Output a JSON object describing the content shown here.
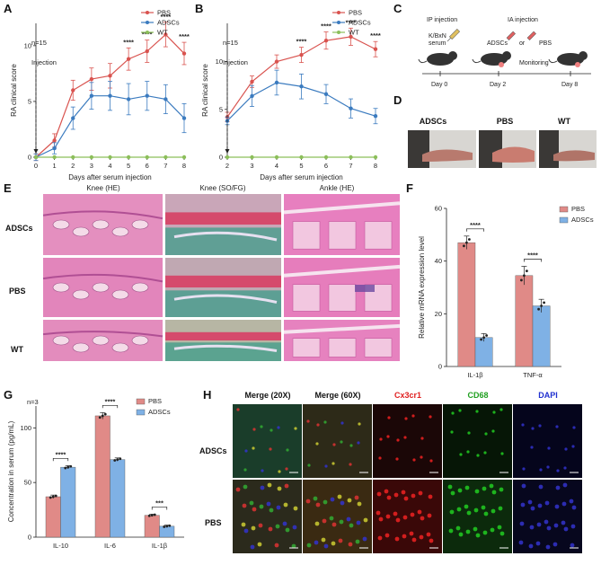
{
  "panels": {
    "A": "A",
    "B": "B",
    "C": "C",
    "D": "D",
    "E": "E",
    "F": "F",
    "G": "G",
    "H": "H"
  },
  "colors": {
    "pbs": "#d9534f",
    "adscs": "#3b7bbf",
    "wt": "#8cbf5a",
    "bar_pbs": "#e08a87",
    "bar_adscs": "#7fb1e5"
  },
  "panelA": {
    "n_label": "n=15",
    "injection_label": "Injection"
  },
  "panelB": {
    "n_label": "n=15",
    "injection_label": "Injection"
  },
  "panelC": {
    "ip_label": "IP injection",
    "ia_label": "IA injection",
    "serum_label1": "K/BxN",
    "serum_label2": "serum",
    "adscs_label": "ADSCs",
    "or_label": "or",
    "pbs_label": "PBS",
    "monitoring_label": "Monitoring",
    "day0": "Day 0",
    "day2": "Day 2",
    "day8": "Day 8"
  },
  "panelD": {
    "labels": [
      "ADSCs",
      "PBS",
      "WT"
    ]
  },
  "panelE": {
    "col_headers": [
      "Knee (HE)",
      "Knee (SO/FG)",
      "Ankle (HE)"
    ],
    "row_labels": [
      "ADSCs",
      "PBS",
      "WT"
    ]
  },
  "panelG": {
    "n_label": "n=3"
  },
  "panelH": {
    "col_headers": [
      "Merge (20X)",
      "Merge (60X)",
      "Cx3cr1",
      "CD68",
      "DAPI"
    ],
    "col_colors": [
      "#111111",
      "#111111",
      "#e02020",
      "#20a020",
      "#2030d0"
    ],
    "row_labels": [
      "ADSCs",
      "PBS"
    ]
  },
  "chart_data": [
    {
      "id": "A",
      "type": "line",
      "xlabel": "Days after serum injection",
      "ylabel": "RA clinical score",
      "x": [
        0,
        1,
        2,
        3,
        4,
        5,
        6,
        7,
        8
      ],
      "xlim": [
        0,
        8
      ],
      "ylim": [
        0,
        12
      ],
      "yticks": [
        0,
        5,
        10
      ],
      "series": [
        {
          "name": "PBS",
          "values": [
            0,
            1.5,
            6,
            7,
            7.3,
            8.8,
            9.5,
            11,
            9.3
          ],
          "err": [
            0.3,
            0.6,
            0.9,
            1.0,
            1.1,
            1.0,
            1.0,
            1.1,
            1.0
          ]
        },
        {
          "name": "ADSCs",
          "values": [
            0,
            0.8,
            3.5,
            5.5,
            5.5,
            5.2,
            5.5,
            5.2,
            3.5
          ],
          "err": [
            0.3,
            0.5,
            1.0,
            1.2,
            1.3,
            1.4,
            1.3,
            1.3,
            1.3
          ]
        },
        {
          "name": "WT",
          "values": [
            0,
            0,
            0,
            0,
            0,
            0,
            0,
            0,
            0
          ]
        }
      ],
      "annotations": [
        {
          "x": 5,
          "text": "****"
        },
        {
          "x": 6,
          "text": "****"
        },
        {
          "x": 7,
          "text": "****"
        },
        {
          "x": 8,
          "text": "****"
        }
      ],
      "legend": "top-right"
    },
    {
      "id": "B",
      "type": "line",
      "xlabel": "Days after serum injection",
      "ylabel": "RA clinical score",
      "x": [
        2,
        3,
        4,
        5,
        6,
        7,
        8
      ],
      "xlim": [
        2,
        8
      ],
      "ylim": [
        0,
        14
      ],
      "yticks": [
        0,
        5,
        10
      ],
      "series": [
        {
          "name": "PBS",
          "values": [
            4.2,
            7.9,
            10,
            10.7,
            12.2,
            12.6,
            11.3
          ],
          "err": [
            0.5,
            0.6,
            0.7,
            0.8,
            0.9,
            0.9,
            0.8
          ]
        },
        {
          "name": "ADSCs",
          "values": [
            3.8,
            6.4,
            7.8,
            7.4,
            6.6,
            5.1,
            4.3
          ],
          "err": [
            0.4,
            1.1,
            1.3,
            1.3,
            1.0,
            1.0,
            0.8
          ]
        },
        {
          "name": "WT",
          "values": [
            0,
            0,
            0,
            0,
            0,
            0,
            0
          ]
        }
      ],
      "annotations": [
        {
          "x": 5,
          "text": "****"
        },
        {
          "x": 6,
          "text": "****"
        },
        {
          "x": 7,
          "text": "****"
        },
        {
          "x": 8,
          "text": "****"
        }
      ],
      "legend": "top-right"
    },
    {
      "id": "F",
      "type": "bar",
      "ylabel": "Relative mRNA expression level",
      "categories": [
        "IL-1β",
        "TNF-α"
      ],
      "ylim": [
        0,
        60
      ],
      "yticks": [
        0,
        20,
        40,
        60
      ],
      "series": [
        {
          "name": "PBS",
          "values": [
            47,
            34.5
          ],
          "err": [
            2.5,
            3.5
          ]
        },
        {
          "name": "ADSCs",
          "values": [
            11,
            23
          ],
          "err": [
            1.5,
            2.5
          ]
        }
      ],
      "annotations": [
        {
          "category": "IL-1β",
          "text": "****"
        },
        {
          "category": "TNF-α",
          "text": "****"
        }
      ],
      "legend": "top-right"
    },
    {
      "id": "G",
      "type": "bar",
      "ylabel": "Concentration in serum (pg/mL)",
      "categories": [
        "IL-10",
        "IL-6",
        "IL-1β"
      ],
      "ylim": [
        0,
        120
      ],
      "yticks": [
        0,
        50,
        100
      ],
      "series": [
        {
          "name": "PBS",
          "values": [
            37,
            111,
            20
          ],
          "err": [
            1.5,
            3,
            1
          ]
        },
        {
          "name": "ADSCs",
          "values": [
            64,
            71,
            10
          ],
          "err": [
            1.5,
            1.5,
            1
          ]
        }
      ],
      "annotations": [
        {
          "category": "IL-10",
          "text": "****"
        },
        {
          "category": "IL-6",
          "text": "****"
        },
        {
          "category": "IL-1β",
          "text": "***"
        }
      ],
      "legend": "top-right"
    }
  ]
}
